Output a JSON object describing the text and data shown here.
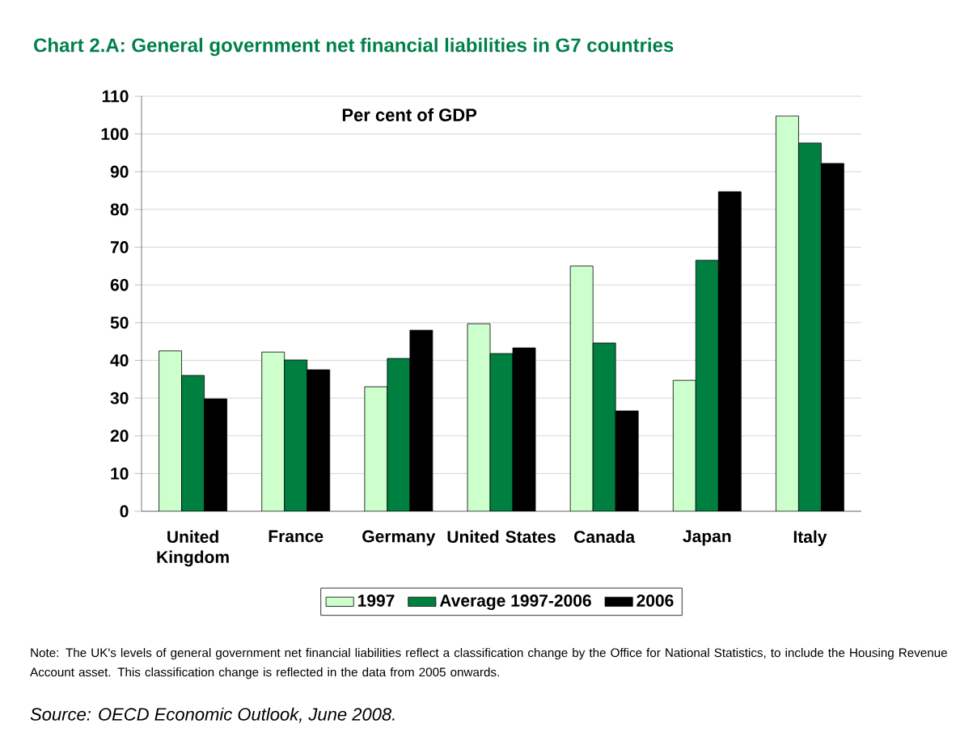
{
  "chart_data": {
    "type": "bar",
    "title": "Chart 2.A: General government net financial liabilities in G7 countries",
    "categories": [
      "United Kingdom",
      "France",
      "Germany",
      "United States",
      "Canada",
      "Japan",
      "Italy"
    ],
    "series": [
      {
        "name": "1997",
        "color": "#ccffcc",
        "values": [
          42.5,
          42.2,
          33.0,
          49.7,
          65.0,
          34.7,
          104.8
        ]
      },
      {
        "name": "Average 1997-2006",
        "color": "#008040",
        "values": [
          36.0,
          40.1,
          40.5,
          41.8,
          44.6,
          66.5,
          97.6
        ]
      },
      {
        "name": "2006",
        "color": "#000000",
        "values": [
          29.8,
          37.5,
          48.0,
          43.3,
          26.6,
          84.7,
          92.2
        ]
      }
    ],
    "ylim": [
      0,
      110
    ],
    "yticks": [
      0,
      10,
      20,
      30,
      40,
      50,
      60,
      70,
      80,
      90,
      100,
      110
    ],
    "grid": "y",
    "legend": "bottom",
    "annotations": [
      "Per cent of GDP",
      "Note: The UK's levels of general government net financial liabilities reflect a classification change by the Office for National Statistics, to include the Housing Revenue Account asset. This classification change is reflected in the data from 2005 onwards.",
      "Source: OECD Economic Outlook, June 2008."
    ]
  }
}
